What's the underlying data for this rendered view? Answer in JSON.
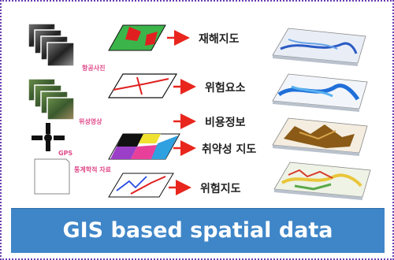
{
  "caption": "GIS based spatial data",
  "sources": {
    "aerial_photo": "항공사진",
    "satellite_image": "위성영상",
    "gps": "GPS",
    "statistics": "통계학적 자료"
  },
  "outputs": [
    "재해지도",
    "위험요소",
    "비용정보",
    "취약성 지도",
    "위험지도"
  ],
  "colors": {
    "frame_border": "#6a3fb0",
    "caption_bg": "#3f86c8",
    "arrow": "#e8261d"
  }
}
